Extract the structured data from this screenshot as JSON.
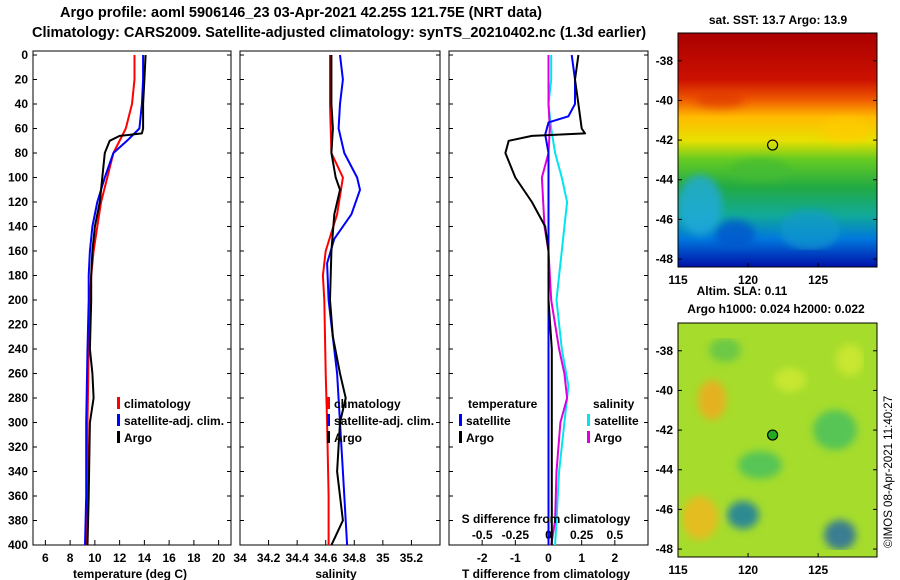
{
  "header": {
    "line1": "Argo profile: aoml 5906146_23 03-Apr-2021 42.25S 121.75E (NRT data)",
    "line2": "Climatology: CARS2009. Satellite-adjusted climatology: synTS_20210402.nc (1.3d earlier)"
  },
  "credit": "©IMOS 08-Apr-2021 11:40:27",
  "colors": {
    "climatology": "#ff0000",
    "satellite": "#0000ff",
    "argo": "#000000",
    "cyan": "#00e5ee",
    "magenta": "#dd00dd"
  },
  "chart_data": [
    {
      "type": "line",
      "name": "temperature-panel",
      "xlabel": "temperature (deg C)",
      "xlim": [
        5,
        21
      ],
      "ylim": [
        400,
        0
      ],
      "xticks": [
        "6",
        "8",
        "10",
        "12",
        "14",
        "16",
        "18",
        "20"
      ],
      "xtick_values": [
        6,
        8,
        10,
        12,
        14,
        16,
        18,
        20
      ],
      "yticks": [
        0,
        20,
        40,
        60,
        80,
        100,
        120,
        140,
        160,
        180,
        200,
        220,
        240,
        260,
        280,
        300,
        320,
        340,
        360,
        380,
        400
      ],
      "legend": [
        "climatology",
        "satellite-adj. clim.",
        "Argo"
      ],
      "series": [
        {
          "name": "climatology",
          "color": "#ff0000",
          "points": [
            [
              13.2,
              0
            ],
            [
              13.2,
              20
            ],
            [
              13.0,
              40
            ],
            [
              12.5,
              60
            ],
            [
              11.5,
              80
            ],
            [
              11.0,
              100
            ],
            [
              10.5,
              120
            ],
            [
              10.2,
              140
            ],
            [
              9.9,
              160
            ],
            [
              9.7,
              180
            ],
            [
              9.6,
              200
            ],
            [
              9.5,
              240
            ],
            [
              9.4,
              300
            ],
            [
              9.4,
              340
            ],
            [
              9.3,
              400
            ]
          ]
        },
        {
          "name": "satellite-adj. clim.",
          "color": "#0000ff",
          "points": [
            [
              13.9,
              0
            ],
            [
              13.9,
              20
            ],
            [
              13.8,
              40
            ],
            [
              13.6,
              60
            ],
            [
              12.6,
              70
            ],
            [
              11.5,
              80
            ],
            [
              10.8,
              100
            ],
            [
              10.2,
              120
            ],
            [
              9.8,
              140
            ],
            [
              9.6,
              160
            ],
            [
              9.5,
              180
            ],
            [
              9.5,
              200
            ],
            [
              9.4,
              240
            ],
            [
              9.3,
              300
            ],
            [
              9.3,
              360
            ],
            [
              9.2,
              400
            ]
          ]
        },
        {
          "name": "Argo",
          "color": "#000000",
          "points": [
            [
              14.1,
              0
            ],
            [
              14.0,
              20
            ],
            [
              13.9,
              40
            ],
            [
              13.9,
              60
            ],
            [
              13.8,
              64
            ],
            [
              12.0,
              66
            ],
            [
              11.2,
              70
            ],
            [
              10.8,
              80
            ],
            [
              10.6,
              100
            ],
            [
              10.4,
              120
            ],
            [
              10.0,
              140
            ],
            [
              9.8,
              160
            ],
            [
              9.7,
              180
            ],
            [
              9.7,
              200
            ],
            [
              9.6,
              240
            ],
            [
              9.8,
              260
            ],
            [
              9.9,
              280
            ],
            [
              9.6,
              300
            ],
            [
              9.5,
              360
            ],
            [
              9.4,
              400
            ]
          ]
        }
      ]
    },
    {
      "type": "line",
      "name": "salinity-panel",
      "xlabel": "salinity",
      "xlim": [
        34.0,
        35.4
      ],
      "ylim": [
        400,
        0
      ],
      "xticks": [
        "34",
        "34.2",
        "34.4",
        "34.6",
        "34.8",
        "35",
        "35.2"
      ],
      "xtick_values": [
        34.0,
        34.2,
        34.4,
        34.6,
        34.8,
        35.0,
        35.2
      ],
      "legend": [
        "climatology",
        "satellite-adj. clim.",
        "Argo"
      ],
      "series": [
        {
          "name": "climatology",
          "color": "#ff0000",
          "points": [
            [
              34.63,
              0
            ],
            [
              34.63,
              40
            ],
            [
              34.64,
              80
            ],
            [
              34.72,
              100
            ],
            [
              34.68,
              130
            ],
            [
              34.6,
              160
            ],
            [
              34.58,
              180
            ],
            [
              34.59,
              200
            ],
            [
              34.6,
              260
            ],
            [
              34.61,
              300
            ],
            [
              34.62,
              360
            ],
            [
              34.62,
              400
            ]
          ]
        },
        {
          "name": "satellite-adj. clim.",
          "color": "#0000ff",
          "points": [
            [
              34.7,
              0
            ],
            [
              34.72,
              20
            ],
            [
              34.7,
              40
            ],
            [
              34.69,
              60
            ],
            [
              34.73,
              80
            ],
            [
              34.82,
              100
            ],
            [
              34.84,
              110
            ],
            [
              34.78,
              130
            ],
            [
              34.66,
              150
            ],
            [
              34.61,
              170
            ],
            [
              34.62,
              200
            ],
            [
              34.64,
              220
            ],
            [
              34.68,
              260
            ],
            [
              34.7,
              300
            ],
            [
              34.72,
              340
            ],
            [
              34.74,
              380
            ],
            [
              34.75,
              400
            ]
          ]
        },
        {
          "name": "Argo",
          "color": "#000000",
          "points": [
            [
              34.64,
              0
            ],
            [
              34.64,
              40
            ],
            [
              34.65,
              60
            ],
            [
              34.64,
              80
            ],
            [
              34.67,
              100
            ],
            [
              34.7,
              110
            ],
            [
              34.66,
              130
            ],
            [
              34.64,
              160
            ],
            [
              34.63,
              200
            ],
            [
              34.65,
              230
            ],
            [
              34.7,
              260
            ],
            [
              34.74,
              280
            ],
            [
              34.7,
              300
            ],
            [
              34.68,
              340
            ],
            [
              34.7,
              360
            ],
            [
              34.72,
              380
            ],
            [
              34.66,
              395
            ],
            [
              34.64,
              400
            ]
          ]
        }
      ]
    },
    {
      "type": "line",
      "name": "difference-panel",
      "xlabel": "T difference from climatology",
      "top_xlabel": "S difference from climatology",
      "xlim": [
        -3,
        3
      ],
      "top_xlim": [
        -0.75,
        0.75
      ],
      "ylim": [
        400,
        0
      ],
      "xticks": [
        "-2",
        "-1",
        "0",
        "1",
        "2"
      ],
      "xtick_values": [
        -2,
        -1,
        0,
        1,
        2
      ],
      "top_xticks": [
        "-0.5",
        "-0.25",
        "0",
        "0.25",
        "0.5"
      ],
      "top_xtick_values": [
        -0.5,
        -0.25,
        0,
        0.25,
        0.5
      ],
      "legend_temperature": {
        "heading": "temperature",
        "items": [
          "satellite",
          "Argo"
        ]
      },
      "legend_salinity": {
        "heading": "salinity",
        "items": [
          "satellite",
          "Argo"
        ]
      },
      "series": [
        {
          "name": "temperature satellite",
          "color": "#0000ff",
          "axis": "T",
          "points": [
            [
              0.7,
              0
            ],
            [
              0.8,
              20
            ],
            [
              0.8,
              40
            ],
            [
              0.6,
              50
            ],
            [
              0.0,
              55
            ],
            [
              -0.1,
              65
            ],
            [
              0,
              80
            ],
            [
              0,
              120
            ],
            [
              0,
              160
            ],
            [
              0,
              200
            ],
            [
              0,
              240
            ],
            [
              0,
              300
            ],
            [
              0,
              360
            ],
            [
              0,
              400
            ]
          ]
        },
        {
          "name": "temperature Argo",
          "color": "#000000",
          "axis": "T",
          "points": [
            [
              0.9,
              0
            ],
            [
              0.8,
              20
            ],
            [
              0.9,
              40
            ],
            [
              1.0,
              60
            ],
            [
              1.1,
              64
            ],
            [
              -0.5,
              66
            ],
            [
              -1.2,
              70
            ],
            [
              -1.3,
              80
            ],
            [
              -1.0,
              100
            ],
            [
              -0.5,
              120
            ],
            [
              -0.1,
              140
            ],
            [
              0,
              160
            ],
            [
              0,
              200
            ],
            [
              0.1,
              240
            ],
            [
              0.1,
              300
            ],
            [
              0.1,
              400
            ]
          ]
        },
        {
          "name": "salinity satellite",
          "color": "#00e5ee",
          "axis": "S",
          "points": [
            [
              0.02,
              0
            ],
            [
              0.02,
              20
            ],
            [
              0.0,
              40
            ],
            [
              0.02,
              60
            ],
            [
              0.05,
              80
            ],
            [
              0.1,
              100
            ],
            [
              0.14,
              120
            ],
            [
              0.12,
              140
            ],
            [
              0.1,
              160
            ],
            [
              0.08,
              180
            ],
            [
              0.06,
              200
            ],
            [
              0.1,
              240
            ],
            [
              0.15,
              270
            ],
            [
              0.12,
              300
            ],
            [
              0.08,
              340
            ],
            [
              0.06,
              380
            ],
            [
              0.05,
              400
            ]
          ]
        },
        {
          "name": "salinity Argo",
          "color": "#dd00dd",
          "axis": "S",
          "points": [
            [
              0.0,
              0
            ],
            [
              0.0,
              40
            ],
            [
              0.01,
              60
            ],
            [
              0.0,
              80
            ],
            [
              -0.05,
              100
            ],
            [
              -0.04,
              120
            ],
            [
              -0.03,
              140
            ],
            [
              0.0,
              160
            ],
            [
              0.02,
              200
            ],
            [
              0.08,
              240
            ],
            [
              0.12,
              260
            ],
            [
              0.14,
              280
            ],
            [
              0.09,
              300
            ],
            [
              0.06,
              340
            ],
            [
              0.05,
              380
            ],
            [
              0.02,
              400
            ]
          ]
        }
      ]
    },
    {
      "type": "heatmap",
      "name": "sst-map",
      "title": "sat. SST: 13.7 Argo: 13.9",
      "xlim": [
        115,
        129.2
      ],
      "ylim": [
        -48.4,
        -36.6
      ],
      "xticks": [
        "115",
        "120",
        "125"
      ],
      "xtick_values": [
        115,
        120,
        125
      ],
      "yticks": [
        "-38",
        "-40",
        "-42",
        "-44",
        "-46",
        "-48"
      ],
      "ytick_values": [
        -38,
        -40,
        -42,
        -44,
        -46,
        -48
      ],
      "marker": {
        "lon": 121.75,
        "lat": -42.25
      }
    },
    {
      "type": "heatmap",
      "name": "sla-map",
      "title": "Altim. SLA: 0.11",
      "subtitle": "Argo h1000: 0.024 h2000: 0.022",
      "xlim": [
        115,
        129.2
      ],
      "ylim": [
        -48.4,
        -36.6
      ],
      "xticks": [
        "115",
        "120",
        "125"
      ],
      "xtick_values": [
        115,
        120,
        125
      ],
      "yticks": [
        "-38",
        "-40",
        "-42",
        "-44",
        "-46",
        "-48"
      ],
      "ytick_values": [
        -38,
        -40,
        -42,
        -44,
        -46,
        -48
      ],
      "marker": {
        "lon": 121.75,
        "lat": -42.25
      }
    }
  ]
}
